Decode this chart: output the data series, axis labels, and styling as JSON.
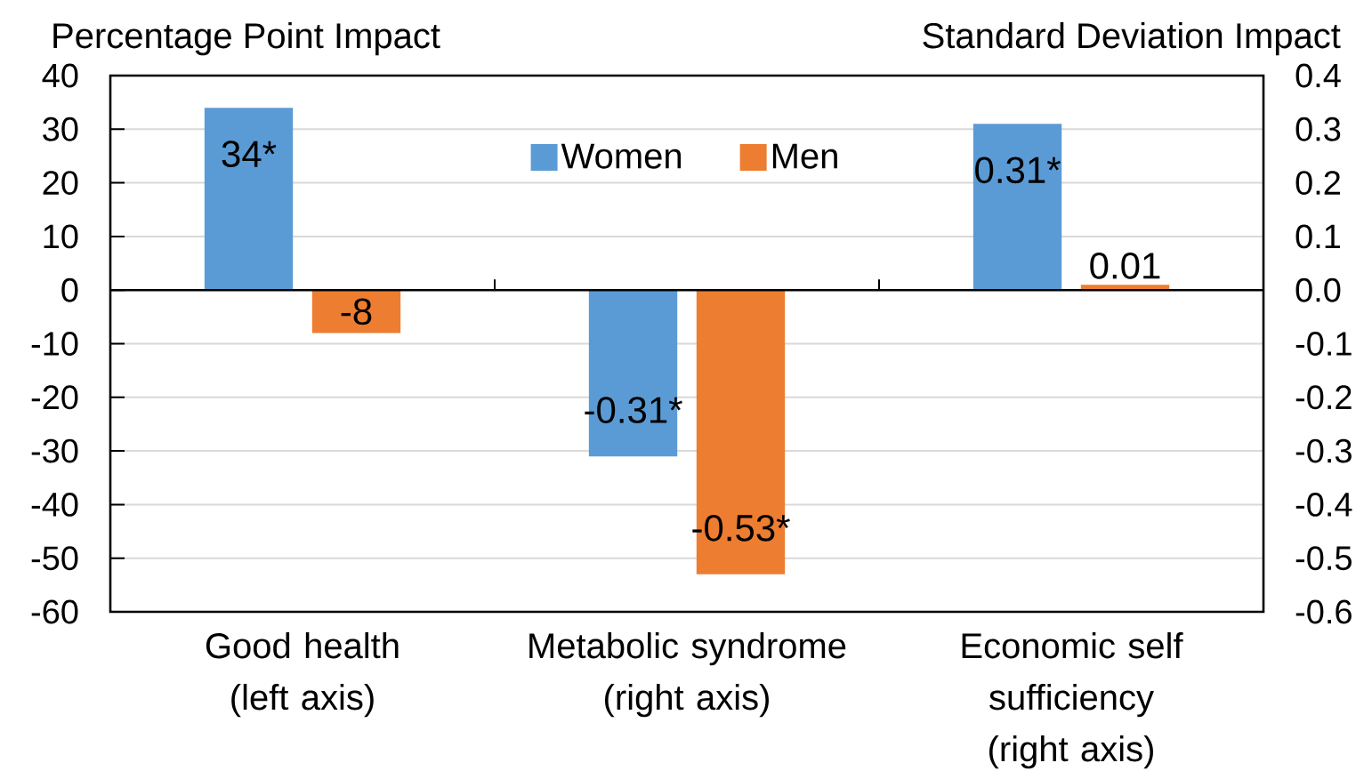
{
  "chart_data": {
    "type": "bar",
    "ylabel": "Percentage Point Impact",
    "y2label": "Standard Deviation Impact",
    "categories": [
      "Good health (left axis)",
      "Metabolic syndrome (right axis)",
      "Economic self sufficiency (right axis)"
    ],
    "series": [
      {
        "name": "Women",
        "color": "#5b9bd5",
        "values": [
          34,
          null,
          null
        ],
        "value_labels": [
          "34*",
          null,
          null
        ]
      },
      {
        "name": "Men",
        "color": "#ed7d31",
        "values": [
          -8,
          null,
          null
        ],
        "value_labels": [
          "-8",
          null,
          null
        ]
      },
      {
        "color": "#5b9bd5",
        "axis": "y2",
        "values": [
          null,
          -0.31,
          0.31
        ],
        "value_labels": [
          null,
          "-0.31*",
          "0.31*"
        ]
      },
      {
        "color": "#ed7d31",
        "axis": "y2",
        "values": [
          null,
          -0.53,
          0.01
        ],
        "value_labels": [
          null,
          "-0.53*",
          "0.01"
        ]
      }
    ],
    "ylim": [
      -60,
      40
    ],
    "yticks": [
      -60,
      -50,
      -40,
      -30,
      -20,
      -10,
      0,
      10,
      20,
      30,
      40
    ],
    "y2lim": [
      -0.6,
      0.4
    ],
    "y2ticks": [
      -0.6,
      -0.5,
      -0.4,
      -0.3,
      -0.2,
      -0.1,
      {
        "value": 0,
        "label": "0.0"
      },
      0.1,
      0.2,
      0.3,
      0.4
    ],
    "grid": "y",
    "legend": "top"
  }
}
